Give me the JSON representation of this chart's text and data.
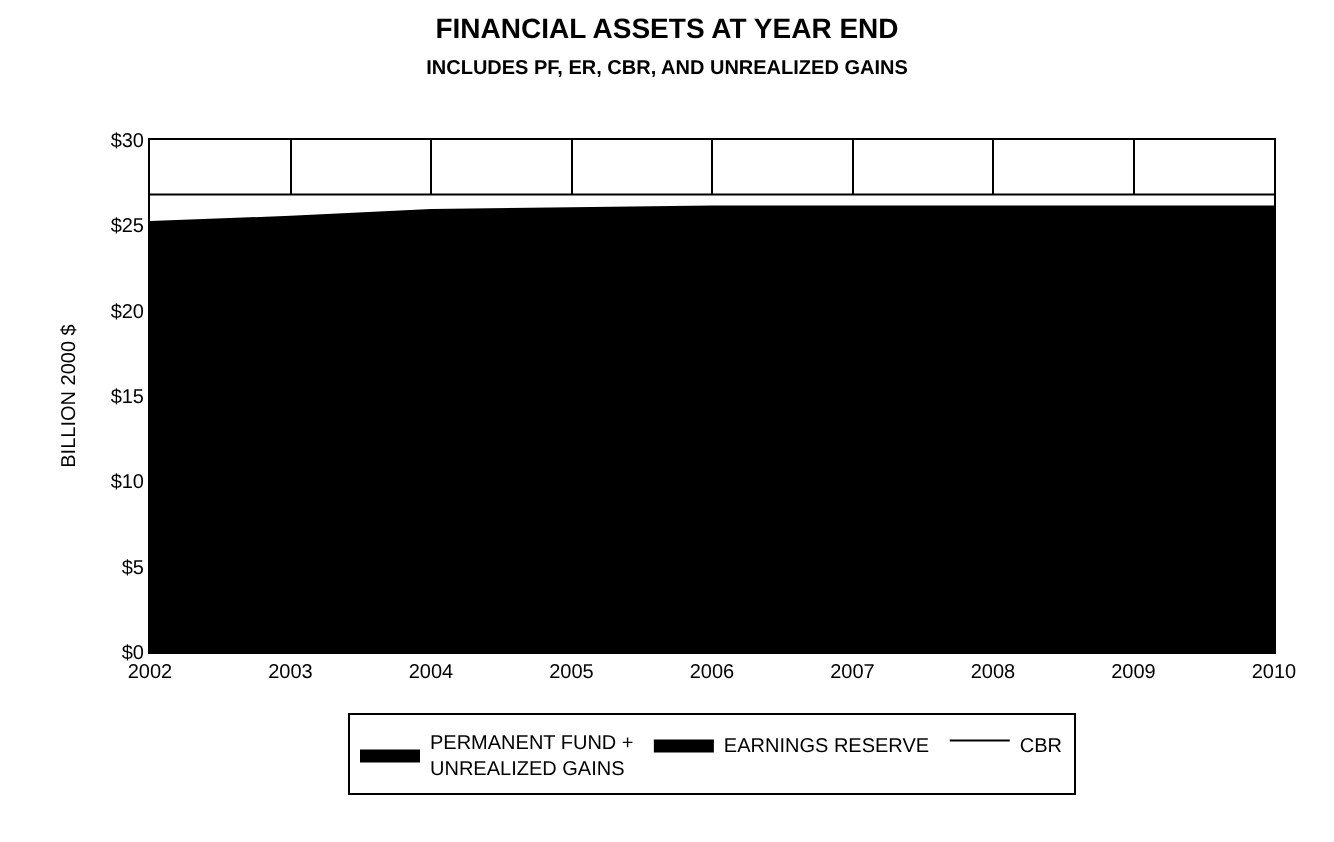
{
  "chart_data": {
    "type": "area",
    "stacked": true,
    "title": "FINANCIAL ASSETS AT YEAR END",
    "subtitle": "INCLUDES PF, ER, CBR, AND UNREALIZED GAINS",
    "ylabel": "BILLION 2000 $",
    "x": [
      2002,
      2003,
      2004,
      2005,
      2006,
      2007,
      2008,
      2009,
      2010
    ],
    "series": [
      {
        "name": "PERMANENT FUND +\nUNREALIZED GAINS",
        "color": "#000000",
        "values": [
          25.2,
          25.5,
          25.9,
          26.0,
          26.1,
          26.1,
          26.1,
          26.1,
          26.1
        ]
      },
      {
        "name": "EARNINGS RESERVE",
        "color": "#000000",
        "values": [
          null,
          null,
          null,
          null,
          null,
          null,
          null,
          null,
          null
        ]
      },
      {
        "name": "CBR",
        "color": "#ffffff",
        "values": [
          1.6,
          1.3,
          0.9,
          0.8,
          0.7,
          0.7,
          0.7,
          0.7,
          0.7
        ]
      }
    ],
    "xlim": [
      2002,
      2010
    ],
    "xticks": [
      2002,
      2003,
      2004,
      2005,
      2006,
      2007,
      2008,
      2009,
      2010
    ],
    "ylim": [
      0,
      30
    ],
    "yticks": [
      {
        "value": 0,
        "label": "$0"
      },
      {
        "value": 5,
        "label": "$5"
      },
      {
        "value": 10,
        "label": "$10"
      },
      {
        "value": 15,
        "label": "$15"
      },
      {
        "value": 20,
        "label": "$20"
      },
      {
        "value": 25,
        "label": "$25"
      },
      {
        "value": 30,
        "label": "$30"
      }
    ],
    "grid": "x",
    "legend": "bottom"
  }
}
